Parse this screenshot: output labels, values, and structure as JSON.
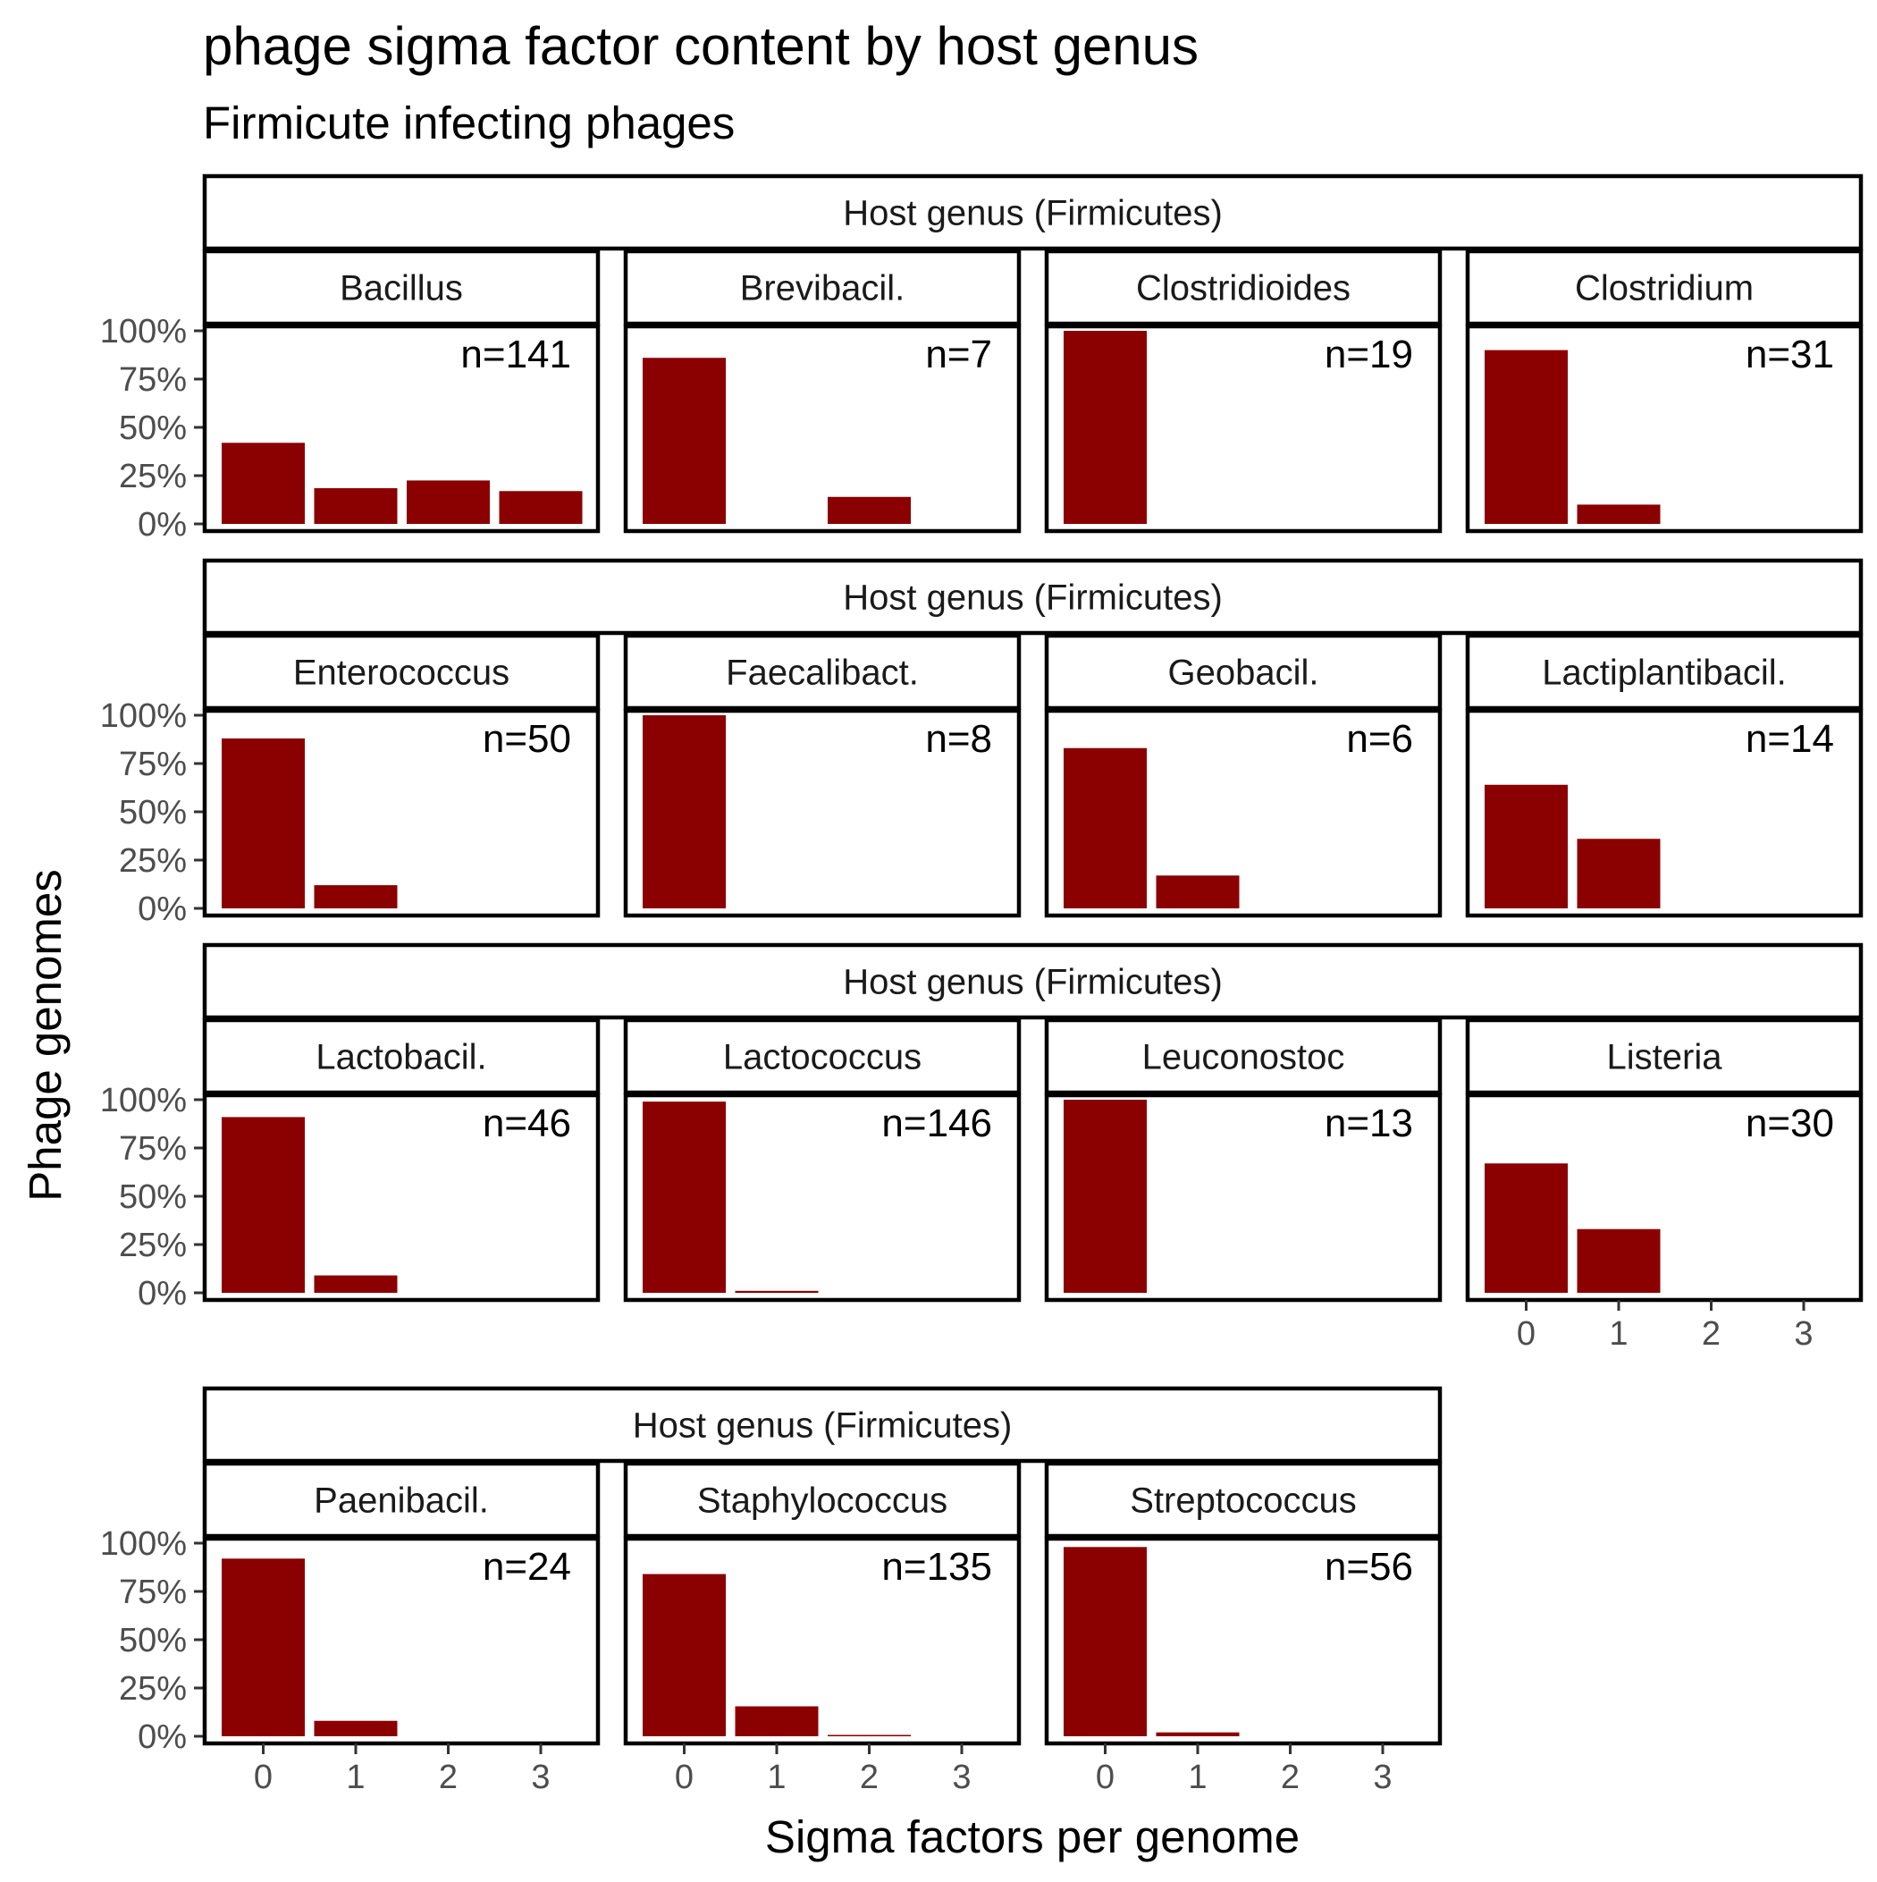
{
  "chart_data": {
    "type": "bar",
    "title": "phage sigma factor content by host genus",
    "subtitle": "Firmicute infecting phages",
    "xlabel": "Sigma factors per genome",
    "ylabel": "Phage genomes",
    "strip_outer_label": "Host genus (Firmicutes)",
    "bar_color": "#8B0000",
    "grid": false,
    "facet_columns": 4,
    "x_categories": [
      "0",
      "1",
      "2",
      "3"
    ],
    "y_ticks": [
      0,
      25,
      50,
      75,
      100
    ],
    "y_tick_labels": [
      "0%",
      "25%",
      "50%",
      "75%",
      "100%"
    ],
    "ylim": [
      0,
      100
    ],
    "panels": [
      {
        "genus": "Bacillus",
        "n_label": "n=141",
        "values": [
          42,
          18.5,
          22.5,
          17
        ]
      },
      {
        "genus": "Brevibacil.",
        "n_label": "n=7",
        "values": [
          86,
          0,
          14,
          0
        ]
      },
      {
        "genus": "Clostridioides",
        "n_label": "n=19",
        "values": [
          100,
          0,
          0,
          0
        ]
      },
      {
        "genus": "Clostridium",
        "n_label": "n=31",
        "values": [
          90,
          10,
          0,
          0
        ]
      },
      {
        "genus": "Enterococcus",
        "n_label": "n=50",
        "values": [
          88,
          12,
          0,
          0
        ]
      },
      {
        "genus": "Faecalibact.",
        "n_label": "n=8",
        "values": [
          100,
          0,
          0,
          0
        ]
      },
      {
        "genus": "Geobacil.",
        "n_label": "n=6",
        "values": [
          83,
          17,
          0,
          0
        ]
      },
      {
        "genus": "Lactiplantibacil.",
        "n_label": "n=14",
        "values": [
          64,
          36,
          0,
          0
        ]
      },
      {
        "genus": "Lactobacil.",
        "n_label": "n=46",
        "values": [
          91,
          9,
          0,
          0
        ]
      },
      {
        "genus": "Lactococcus",
        "n_label": "n=146",
        "values": [
          99,
          1,
          0,
          0
        ]
      },
      {
        "genus": "Leuconostoc",
        "n_label": "n=13",
        "values": [
          100,
          0,
          0,
          0
        ]
      },
      {
        "genus": "Listeria",
        "n_label": "n=30",
        "values": [
          67,
          33,
          0,
          0
        ]
      },
      {
        "genus": "Paenibacil.",
        "n_label": "n=24",
        "values": [
          92,
          8,
          0,
          0
        ]
      },
      {
        "genus": "Staphylococcus",
        "n_label": "n=135",
        "values": [
          84,
          15.5,
          0.5,
          0
        ]
      },
      {
        "genus": "Streptococcus",
        "n_label": "n=56",
        "values": [
          98,
          2,
          0,
          0
        ]
      }
    ]
  }
}
